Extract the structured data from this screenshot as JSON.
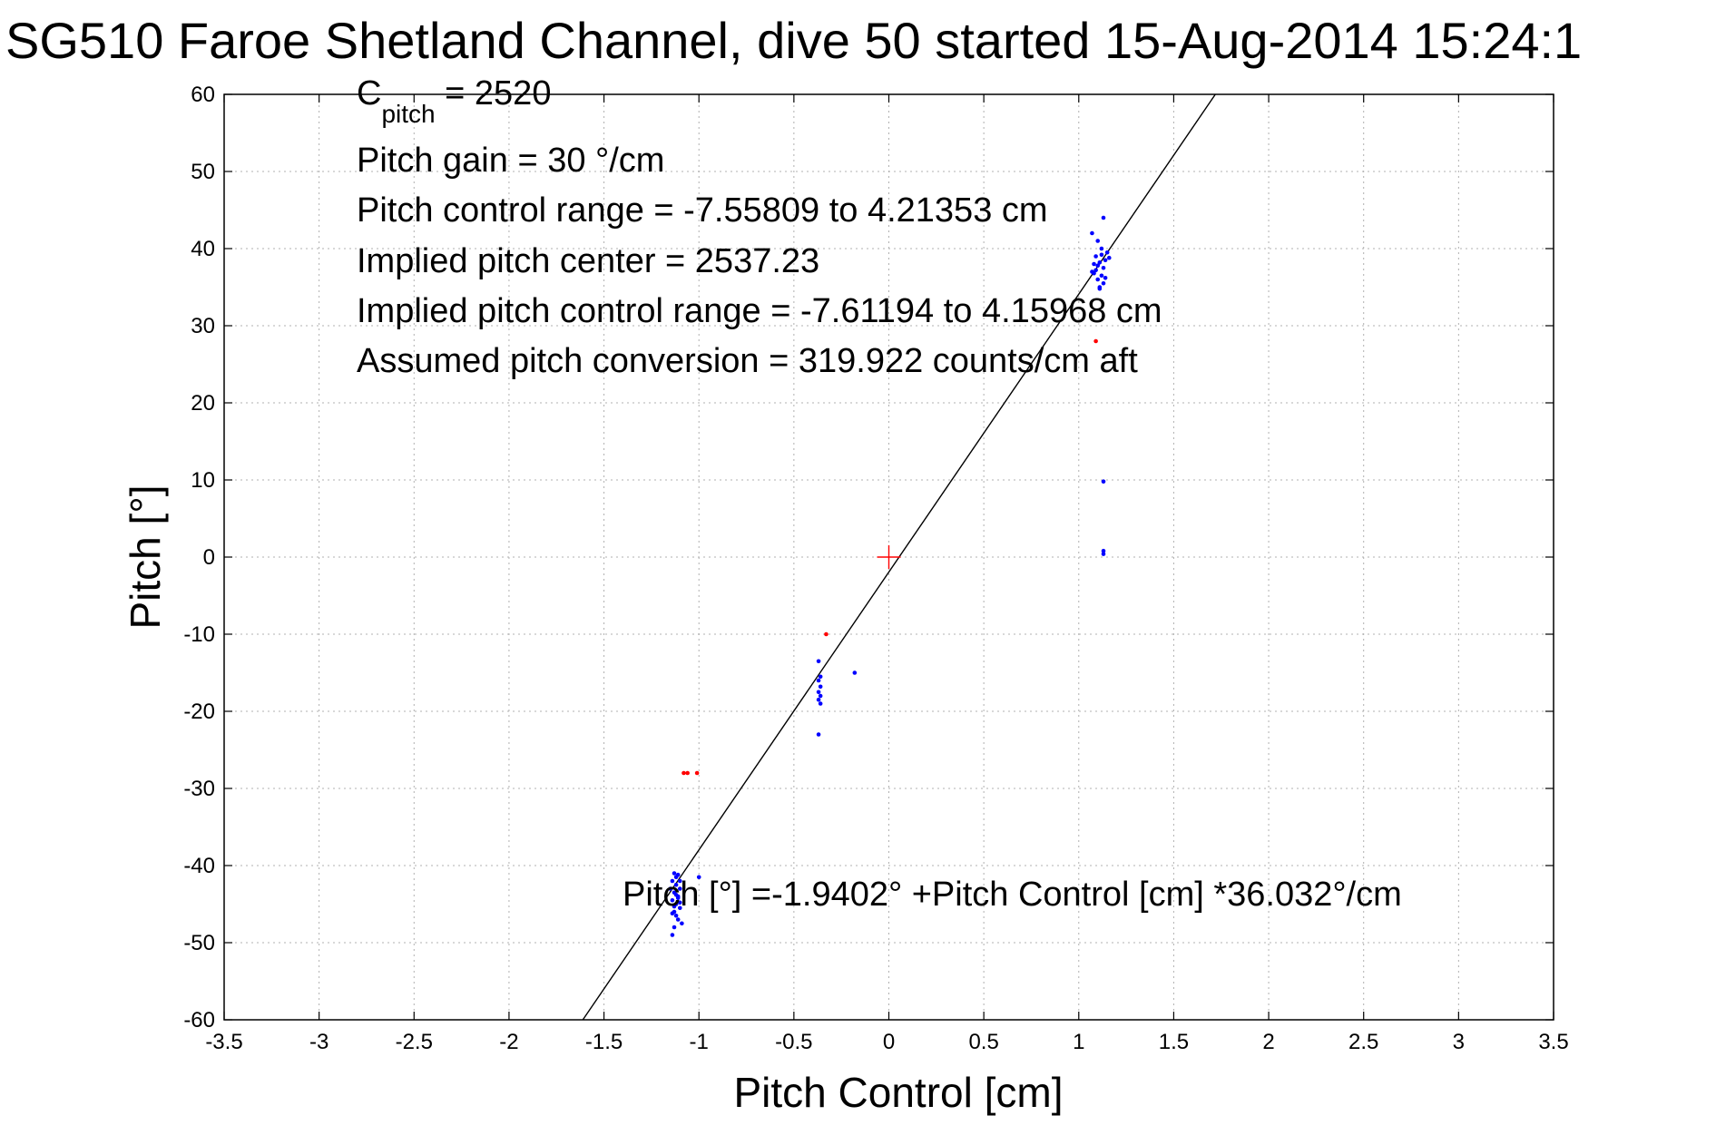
{
  "chart_data": {
    "type": "scatter",
    "title": "SG510 Faroe Shetland Channel, dive 50 started 15-Aug-2014 15:24:1",
    "xlabel": "Pitch Control [cm]",
    "ylabel": "Pitch [°]",
    "xlim": [
      -3.5,
      3.5
    ],
    "ylim": [
      -60,
      60
    ],
    "x_ticks": [
      -3.5,
      -3,
      -2.5,
      -2,
      -1.5,
      -1,
      -0.5,
      0,
      0.5,
      1,
      1.5,
      2,
      2.5,
      3,
      3.5
    ],
    "x_tick_labels": [
      "-3.5",
      "-3",
      "-2.5",
      "-2",
      "-1.5",
      "-1",
      "-0.5",
      "0",
      "0.5",
      "1",
      "1.5",
      "2",
      "2.5",
      "3",
      "3.5"
    ],
    "y_ticks": [
      60,
      50,
      40,
      30,
      20,
      10,
      0,
      -10,
      -20,
      -30,
      -40,
      -50,
      -60
    ],
    "y_tick_labels": [
      "60",
      "50",
      "40",
      "30",
      "20",
      "10",
      "0",
      "-10",
      "-20",
      "-30",
      "-40",
      "-50",
      "-60"
    ],
    "grid": true,
    "colors": {
      "points": "#0000ff",
      "outliers": "#ff0000",
      "fit_line": "#000000",
      "center": "#ff0000"
    },
    "annotations": {
      "c_pitch_prefix": "C",
      "c_pitch_sub": "pitch",
      "c_pitch_value": " = 2520",
      "pitch_gain": "Pitch gain = 30 °/cm",
      "control_range": "Pitch control range = -7.55809 to 4.21353 cm",
      "implied_center": "Implied pitch center = 2537.23",
      "implied_range": "Implied pitch control range = -7.61194 to 4.15968 cm",
      "conversion": "Assumed pitch conversion = 319.922 counts/cm aft",
      "fit_equation": "Pitch [°] =-1.9402° +Pitch Control [cm] *36.032°/cm"
    },
    "fit": {
      "intercept": -1.9402,
      "slope": 36.032
    },
    "center_marker": {
      "x": 0,
      "y": 0
    },
    "series": [
      {
        "values": [
          [
            -1.13,
            -41
          ],
          [
            -1.12,
            -41.5
          ],
          [
            -1.11,
            -41.2
          ],
          [
            -1.14,
            -42
          ],
          [
            -1.12,
            -42.5
          ],
          [
            -1.1,
            -43
          ],
          [
            -1.13,
            -43.5
          ],
          [
            -1.11,
            -44
          ],
          [
            -1.14,
            -44.5
          ],
          [
            -1.12,
            -45
          ],
          [
            -1.1,
            -45.5
          ],
          [
            -1.13,
            -46
          ],
          [
            -1.12,
            -46.5
          ],
          [
            -1.11,
            -47
          ],
          [
            -1.13,
            -48
          ],
          [
            -1.14,
            -49
          ],
          [
            -1.09,
            -47.5
          ],
          [
            -1.15,
            -43
          ],
          [
            -1.1,
            -42
          ],
          [
            -1.13,
            -45.3
          ],
          [
            -1.11,
            -44.2
          ],
          [
            -1.12,
            -43.8
          ],
          [
            -1.14,
            -46.2
          ],
          [
            -1.1,
            -44.8
          ],
          [
            -1.0,
            -41.5
          ],
          [
            -0.37,
            -13.5
          ],
          [
            -0.36,
            -15.5
          ],
          [
            -0.37,
            -16
          ],
          [
            -0.36,
            -16.8
          ],
          [
            -0.37,
            -17.5
          ],
          [
            -0.36,
            -18
          ],
          [
            -0.37,
            -18.5
          ],
          [
            -0.36,
            -19
          ],
          [
            -0.37,
            -23
          ],
          [
            -0.18,
            -15
          ],
          [
            1.07,
            37
          ],
          [
            1.08,
            38
          ],
          [
            1.09,
            39
          ],
          [
            1.1,
            36
          ],
          [
            1.11,
            35
          ],
          [
            1.12,
            40
          ],
          [
            1.13,
            37.5
          ],
          [
            1.14,
            38.5
          ],
          [
            1.15,
            39.5
          ],
          [
            1.1,
            41
          ],
          [
            1.07,
            42
          ],
          [
            1.12,
            36.5
          ],
          [
            1.13,
            44
          ],
          [
            1.11,
            38.2
          ],
          [
            1.09,
            37.2
          ],
          [
            1.14,
            36.2
          ],
          [
            1.16,
            38.8
          ],
          [
            1.08,
            36.8
          ],
          [
            1.12,
            39.2
          ],
          [
            1.1,
            37.8
          ],
          [
            1.13,
            35.5
          ],
          [
            1.11,
            34.8
          ],
          [
            1.13,
            9.8
          ],
          [
            1.13,
            0.8
          ],
          [
            1.13,
            0.4
          ]
        ]
      },
      {
        "values": [
          [
            -1.08,
            -28
          ],
          [
            -1.06,
            -28
          ],
          [
            -1.01,
            -28
          ],
          [
            -0.33,
            -10
          ],
          [
            1.09,
            28
          ]
        ]
      }
    ]
  }
}
